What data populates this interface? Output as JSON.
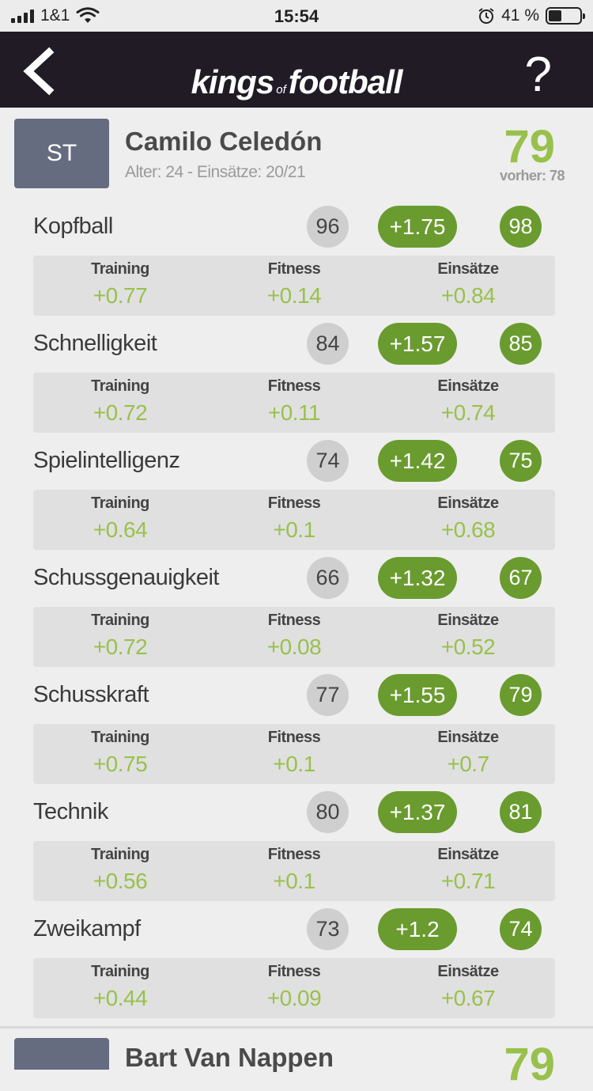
{
  "status_bar": {
    "carrier": "1&1",
    "time": "15:54",
    "battery_percent_label": "41 %",
    "battery_level": 0.41
  },
  "nav": {
    "logo_word1": "kings",
    "logo_word2": "of",
    "logo_word3": "football",
    "help_label": "?"
  },
  "player": {
    "position": "ST",
    "name": "Camilo Celedón",
    "meta": "Alter: 24 - Einsätze: 20/21",
    "overall": "79",
    "previous": "vorher: 78"
  },
  "breakdown_labels": {
    "training": "Training",
    "fitness": "Fitness",
    "matches": "Einsätze"
  },
  "attributes": [
    {
      "name": "Kopfball",
      "current": "96",
      "delta": "+1.75",
      "new": "98",
      "training": "+0.77",
      "fitness": "+0.14",
      "matches": "+0.84"
    },
    {
      "name": "Schnelligkeit",
      "current": "84",
      "delta": "+1.57",
      "new": "85",
      "training": "+0.72",
      "fitness": "+0.11",
      "matches": "+0.74"
    },
    {
      "name": "Spielintelligenz",
      "current": "74",
      "delta": "+1.42",
      "new": "75",
      "training": "+0.64",
      "fitness": "+0.1",
      "matches": "+0.68"
    },
    {
      "name": "Schussgenauigkeit",
      "current": "66",
      "delta": "+1.32",
      "new": "67",
      "training": "+0.72",
      "fitness": "+0.08",
      "matches": "+0.52"
    },
    {
      "name": "Schusskraft",
      "current": "77",
      "delta": "+1.55",
      "new": "79",
      "training": "+0.75",
      "fitness": "+0.1",
      "matches": "+0.7"
    },
    {
      "name": "Technik",
      "current": "80",
      "delta": "+1.37",
      "new": "81",
      "training": "+0.56",
      "fitness": "+0.1",
      "matches": "+0.71"
    },
    {
      "name": "Zweikampf",
      "current": "73",
      "delta": "+1.2",
      "new": "74",
      "training": "+0.44",
      "fitness": "+0.09",
      "matches": "+0.67"
    }
  ],
  "next_player": {
    "name": "Bart Van Nappen",
    "overall": "79"
  },
  "colors": {
    "nav_bg": "#211b26",
    "accent_green": "#6a9b2f",
    "value_green": "#98c14c",
    "badge": "#656c80"
  }
}
